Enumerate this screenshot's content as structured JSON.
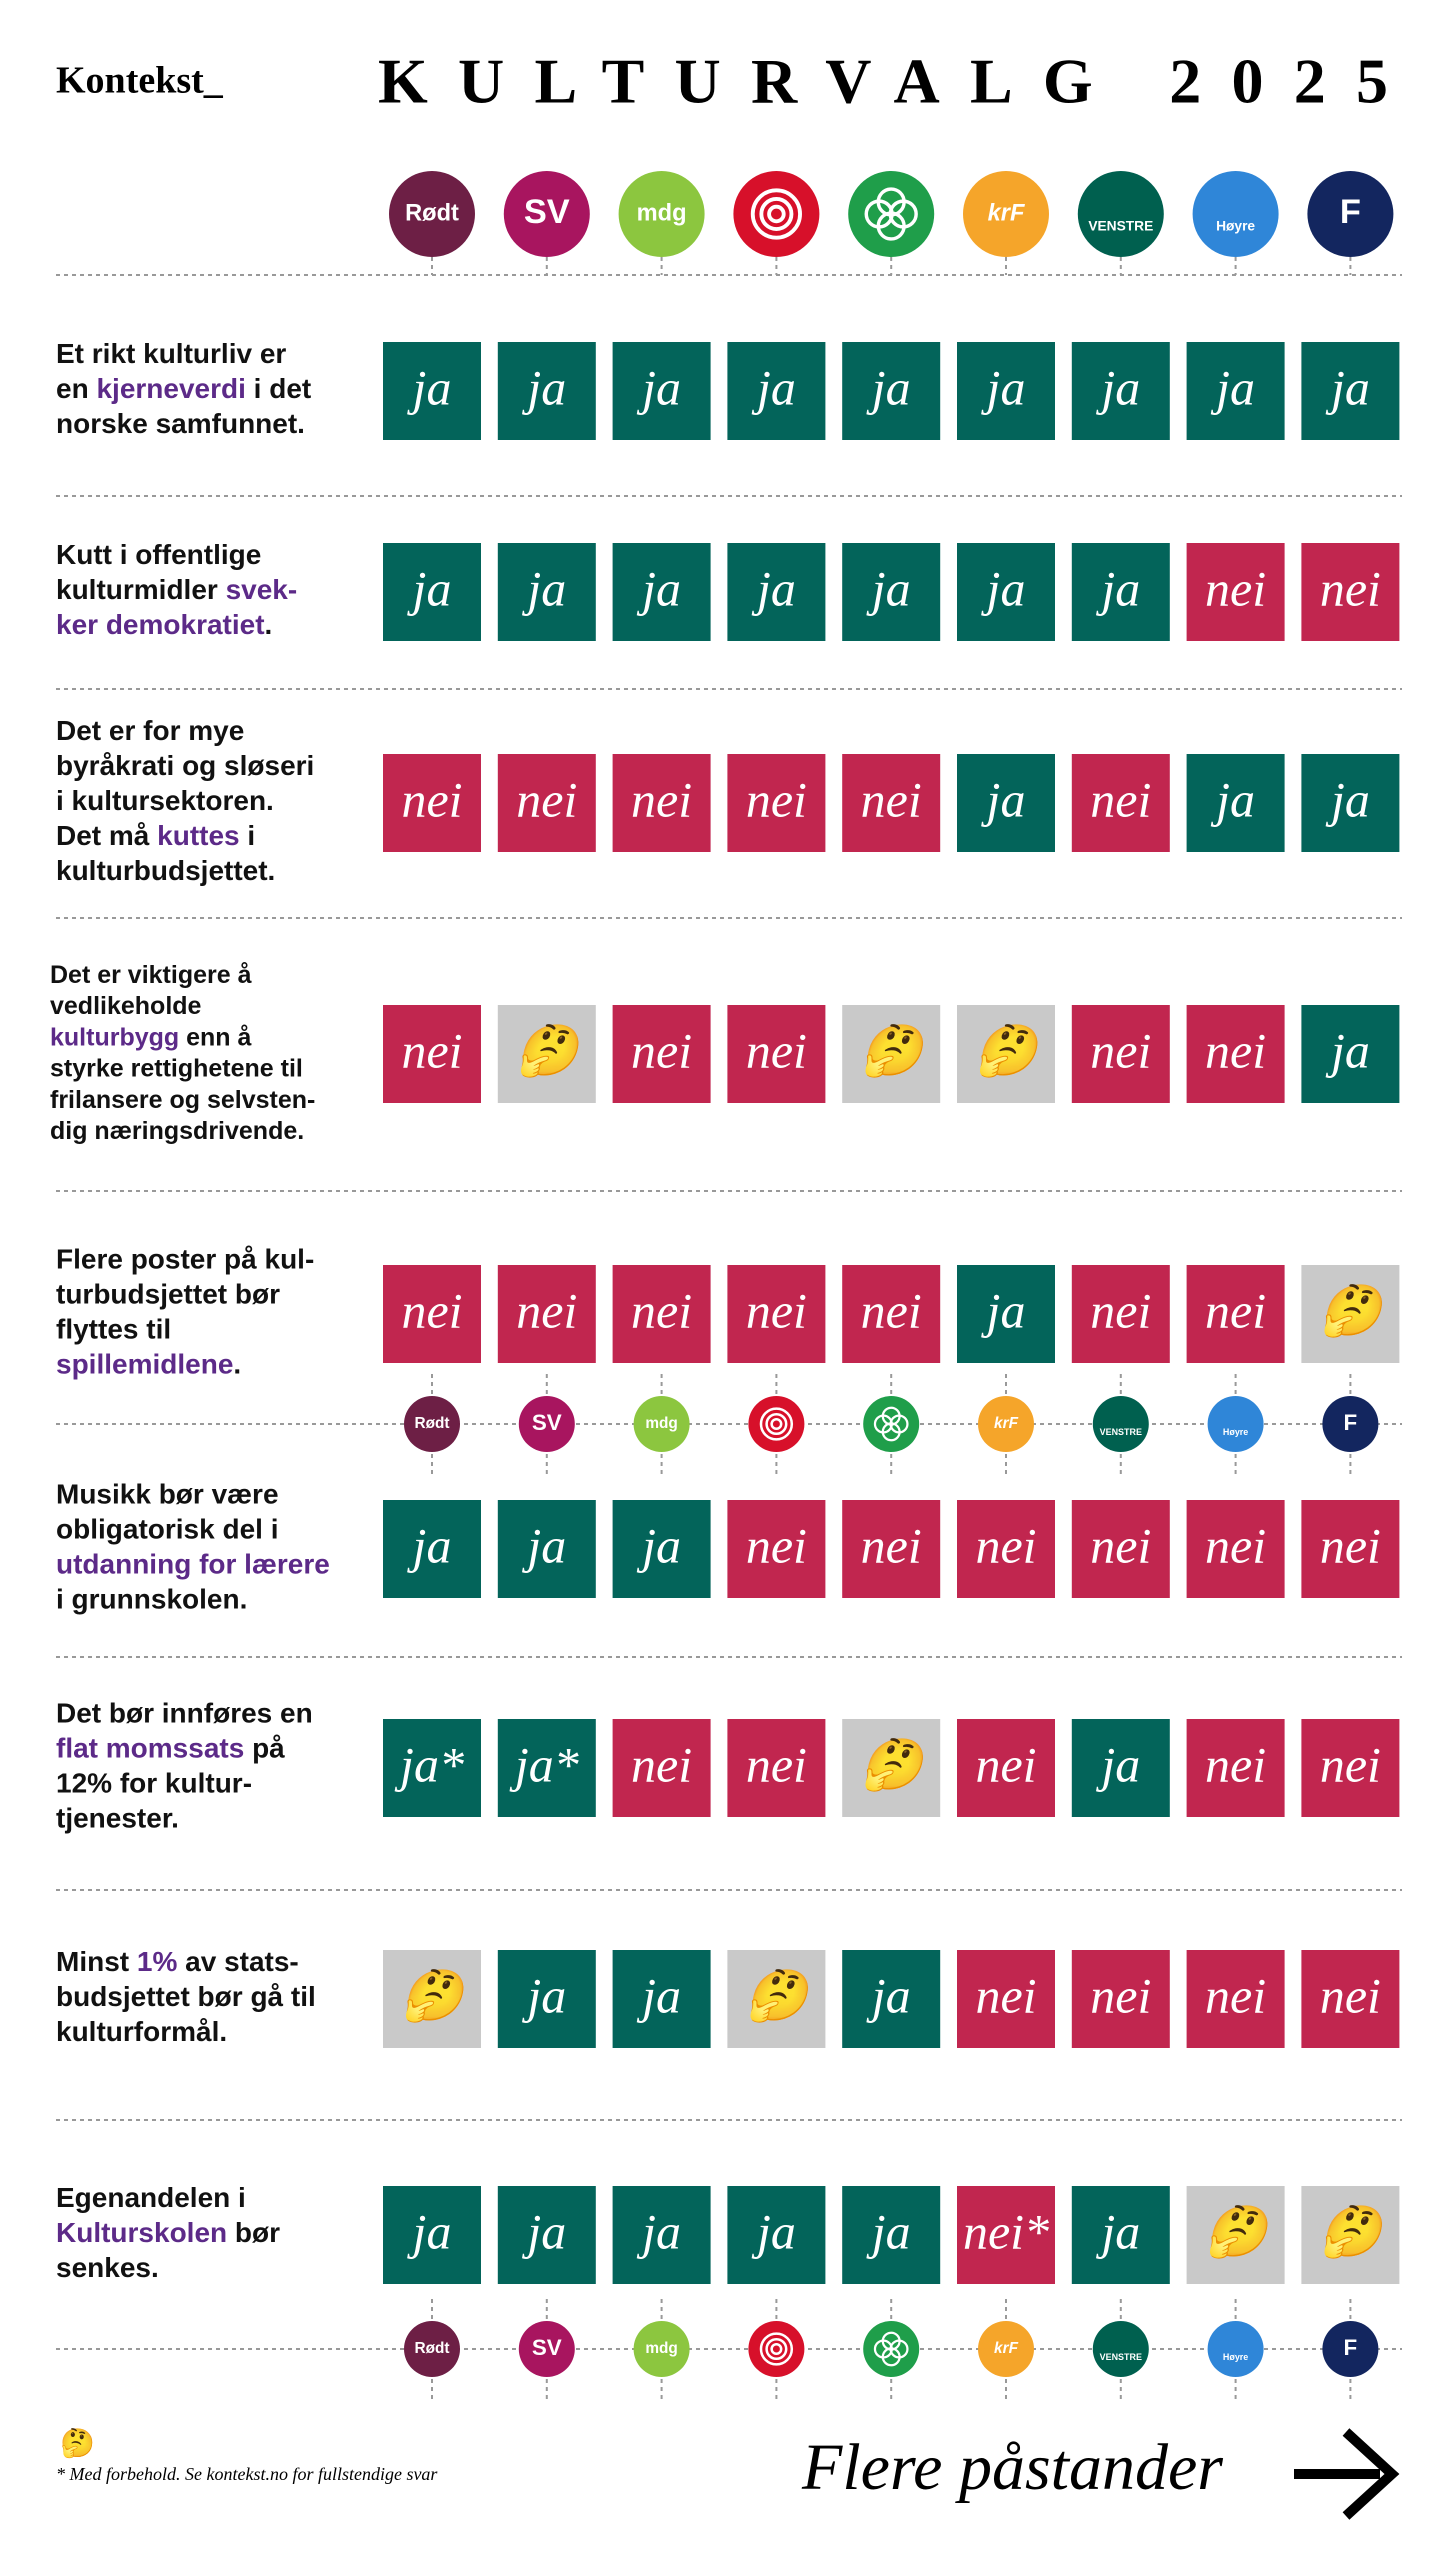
{
  "header": {
    "brand": "Kontekst_",
    "title": "KULTURVALG 2025"
  },
  "parties": [
    {
      "label": "Rødt",
      "color": "#6d1f45"
    },
    {
      "label": "SV",
      "color": "#a8155f"
    },
    {
      "label": "mdg",
      "color": "#8cc63f"
    },
    {
      "color": "#d7102a"
    },
    {
      "color": "#1f9e4a"
    },
    {
      "label": "krF",
      "color": "#f5a52a"
    },
    {
      "label": "VENSTRE",
      "color": "#00604f"
    },
    {
      "label": "Høyre",
      "color": "#2f86d8"
    },
    {
      "label": "F",
      "color": "#13265f"
    }
  ],
  "answer_colors": {
    "ja": "#03645a",
    "nei": "#c1264f",
    "unsure": "#c9c9c9"
  },
  "highlight_color": "#5c2a88",
  "statements": [
    {
      "lines": [
        [
          "Et rikt kulturliv er"
        ],
        [
          "en ",
          {
            "hl": "kjerneverdi"
          },
          " i det"
        ],
        [
          "norske samfunnet."
        ]
      ],
      "answers": [
        "ja",
        "ja",
        "ja",
        "ja",
        "ja",
        "ja",
        "ja",
        "ja",
        "ja"
      ]
    },
    {
      "lines": [
        [
          "Kutt i offentlige"
        ],
        [
          "kulturmidler ",
          {
            "hl": "svek-"
          }
        ],
        [
          {
            "hl": "ker demokratiet"
          },
          "."
        ]
      ],
      "answers": [
        "ja",
        "ja",
        "ja",
        "ja",
        "ja",
        "ja",
        "ja",
        "nei",
        "nei"
      ]
    },
    {
      "lines": [
        [
          "Det er for mye"
        ],
        [
          "byråkrati og sløseri"
        ],
        [
          "i kultursektoren."
        ],
        [
          "Det må ",
          {
            "hl": "kuttes"
          },
          " i"
        ],
        [
          "kulturbudsjettet."
        ]
      ],
      "answers": [
        "nei",
        "nei",
        "nei",
        "nei",
        "nei",
        "ja",
        "nei",
        "ja",
        "ja"
      ]
    },
    {
      "lines": [
        [
          "Det er viktigere å"
        ],
        [
          "vedlikeholde"
        ],
        [
          {
            "hl": "kulturbygg"
          },
          " enn å"
        ],
        [
          "styrke rettighetene til"
        ],
        [
          "frilansere og selvsten-"
        ],
        [
          "dig næringsdrivende."
        ]
      ],
      "answers": [
        "nei",
        "🤔",
        "nei",
        "nei",
        "🤔",
        "🤔",
        "nei",
        "nei",
        "ja"
      ]
    },
    {
      "lines": [
        [
          "Flere poster på kul-"
        ],
        [
          "turbudsjettet bør"
        ],
        [
          "flyttes til"
        ],
        [
          {
            "hl": "spillemidlene"
          },
          "."
        ]
      ],
      "answers": [
        "nei",
        "nei",
        "nei",
        "nei",
        "nei",
        "ja",
        "nei",
        "nei",
        "🤔"
      ]
    },
    {
      "lines": [
        [
          "Musikk bør være"
        ],
        [
          "obligatorisk del i"
        ],
        [
          {
            "hl": "utdanning for lærere"
          }
        ],
        [
          "i grunnskolen."
        ]
      ],
      "answers": [
        "ja",
        "ja",
        "ja",
        "nei",
        "nei",
        "nei",
        "nei",
        "nei",
        "nei"
      ]
    },
    {
      "lines": [
        [
          "Det bør innføres en"
        ],
        [
          {
            "hl": "flat momssats"
          },
          " på"
        ],
        [
          "12% for kultur-"
        ],
        [
          "tjenester."
        ]
      ],
      "answers": [
        "ja*",
        "ja*",
        "nei",
        "nei",
        "🤔",
        "nei",
        "ja",
        "nei",
        "nei"
      ]
    },
    {
      "lines": [
        [
          "Minst ",
          {
            "hl": "1%"
          },
          " av stats-"
        ],
        [
          "budsjettet bør gå til"
        ],
        [
          "kulturformål."
        ]
      ],
      "answers": [
        "🤔",
        "ja",
        "ja",
        "🤔",
        "ja",
        "nei",
        "nei",
        "nei",
        "nei"
      ]
    },
    {
      "lines": [
        [
          "Egenandelen i"
        ],
        [
          {
            "hl": "Kulturskolen"
          },
          " bør"
        ],
        [
          "senkes."
        ]
      ],
      "answers": [
        "ja",
        "ja",
        "ja",
        "ja",
        "ja",
        "nei*",
        "ja",
        "🤔",
        "🤔"
      ]
    }
  ],
  "footer": {
    "icon": "🤔",
    "note": "* Med forbehold. Se kontekst.no for fullstendige svar",
    "more": "Flere påstander"
  }
}
